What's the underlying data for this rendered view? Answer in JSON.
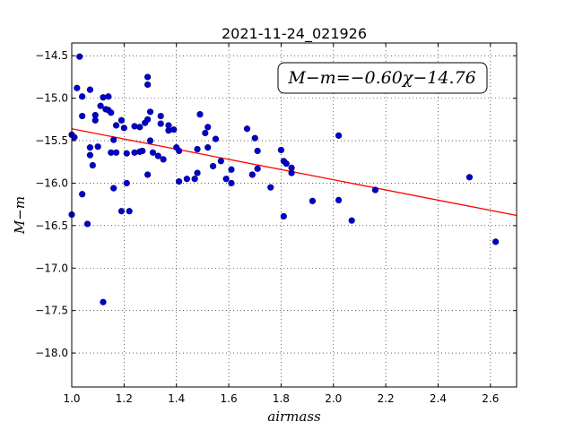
{
  "chart_data": {
    "type": "scatter",
    "title": "2021-11-24_021926",
    "xlabel": "airmass",
    "ylabel": "M−m",
    "xlim": [
      1.0,
      2.7
    ],
    "ylim": [
      -14.35,
      -18.4
    ],
    "y_inverted": true,
    "grid": true,
    "x_ticks": [
      "1.0",
      "1.2",
      "1.4",
      "1.6",
      "1.8",
      "2.0",
      "2.2",
      "2.4",
      "2.6"
    ],
    "x_tick_values": [
      1.0,
      1.2,
      1.4,
      1.6,
      1.8,
      2.0,
      2.2,
      2.4,
      2.6
    ],
    "y_ticks": [
      "−14.5",
      "−15.0",
      "−15.5",
      "−16.0",
      "−16.5",
      "−17.0",
      "−17.5",
      "−18.0"
    ],
    "y_tick_values": [
      -14.5,
      -15.0,
      -15.5,
      -16.0,
      -16.5,
      -17.0,
      -17.5,
      -18.0
    ],
    "annotation": "M−m=−0.60χ−14.76",
    "point_color": "#0000cc",
    "fit_color": "#ff0000",
    "fit": {
      "slope": -0.6,
      "intercept": -14.76
    },
    "points": [
      [
        1.0,
        -15.43
      ],
      [
        1.0,
        -16.37
      ],
      [
        1.01,
        -15.46
      ],
      [
        1.02,
        -14.88
      ],
      [
        1.03,
        -14.51
      ],
      [
        1.04,
        -15.21
      ],
      [
        1.04,
        -14.98
      ],
      [
        1.04,
        -16.13
      ],
      [
        1.06,
        -16.48
      ],
      [
        1.07,
        -14.9
      ],
      [
        1.07,
        -15.67
      ],
      [
        1.07,
        -15.58
      ],
      [
        1.08,
        -15.79
      ],
      [
        1.09,
        -15.2
      ],
      [
        1.09,
        -15.26
      ],
      [
        1.1,
        -15.57
      ],
      [
        1.11,
        -15.09
      ],
      [
        1.12,
        -17.4
      ],
      [
        1.12,
        -14.99
      ],
      [
        1.13,
        -15.13
      ],
      [
        1.14,
        -15.14
      ],
      [
        1.14,
        -14.98
      ],
      [
        1.15,
        -15.17
      ],
      [
        1.15,
        -15.64
      ],
      [
        1.16,
        -15.49
      ],
      [
        1.16,
        -16.06
      ],
      [
        1.17,
        -15.64
      ],
      [
        1.17,
        -15.32
      ],
      [
        1.19,
        -15.26
      ],
      [
        1.19,
        -16.33
      ],
      [
        1.2,
        -15.35
      ],
      [
        1.21,
        -15.65
      ],
      [
        1.21,
        -16.0
      ],
      [
        1.22,
        -16.33
      ],
      [
        1.24,
        -15.33
      ],
      [
        1.24,
        -15.64
      ],
      [
        1.26,
        -15.63
      ],
      [
        1.26,
        -15.34
      ],
      [
        1.27,
        -15.62
      ],
      [
        1.28,
        -15.29
      ],
      [
        1.29,
        -14.75
      ],
      [
        1.29,
        -14.84
      ],
      [
        1.29,
        -15.25
      ],
      [
        1.29,
        -15.9
      ],
      [
        1.3,
        -15.16
      ],
      [
        1.3,
        -15.5
      ],
      [
        1.31,
        -15.64
      ],
      [
        1.33,
        -15.68
      ],
      [
        1.34,
        -15.21
      ],
      [
        1.34,
        -15.3
      ],
      [
        1.35,
        -15.72
      ],
      [
        1.37,
        -15.38
      ],
      [
        1.37,
        -15.32
      ],
      [
        1.39,
        -15.37
      ],
      [
        1.4,
        -15.58
      ],
      [
        1.41,
        -15.62
      ],
      [
        1.41,
        -15.98
      ],
      [
        1.44,
        -15.95
      ],
      [
        1.47,
        -15.95
      ],
      [
        1.48,
        -15.6
      ],
      [
        1.48,
        -15.88
      ],
      [
        1.49,
        -15.19
      ],
      [
        1.51,
        -15.41
      ],
      [
        1.52,
        -15.34
      ],
      [
        1.52,
        -15.58
      ],
      [
        1.54,
        -15.8
      ],
      [
        1.55,
        -15.48
      ],
      [
        1.57,
        -15.74
      ],
      [
        1.59,
        -15.95
      ],
      [
        1.61,
        -15.84
      ],
      [
        1.61,
        -16.0
      ],
      [
        1.67,
        -15.36
      ],
      [
        1.69,
        -15.9
      ],
      [
        1.7,
        -15.47
      ],
      [
        1.71,
        -15.83
      ],
      [
        1.71,
        -15.62
      ],
      [
        1.76,
        -16.05
      ],
      [
        1.8,
        -15.61
      ],
      [
        1.81,
        -15.74
      ],
      [
        1.81,
        -16.39
      ],
      [
        1.82,
        -15.77
      ],
      [
        1.84,
        -15.88
      ],
      [
        1.84,
        -15.82
      ],
      [
        1.92,
        -16.21
      ],
      [
        2.02,
        -15.44
      ],
      [
        2.02,
        -16.2
      ],
      [
        2.07,
        -16.44
      ],
      [
        2.16,
        -16.08
      ],
      [
        2.52,
        -15.93
      ],
      [
        2.62,
        -16.69
      ]
    ]
  }
}
